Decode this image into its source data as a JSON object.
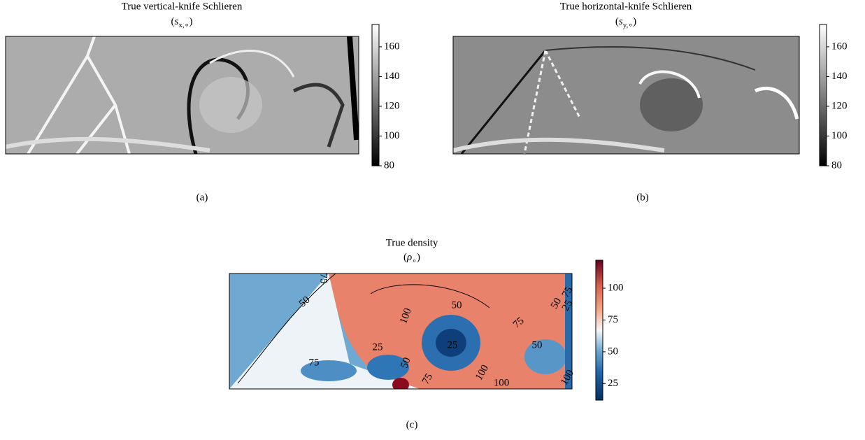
{
  "chart_data": [
    {
      "type": "heatmap",
      "title": "True vertical-knife Schlieren",
      "subtitle": [
        "(",
        "s",
        "x,∘",
        ")"
      ],
      "caption": "(a)",
      "colormap": "gray",
      "clim": [
        80,
        175
      ],
      "cticks": [
        80,
        100,
        120,
        140,
        160
      ]
    },
    {
      "type": "heatmap",
      "title": "True horizontal-knife Schlieren",
      "subtitle": [
        "(",
        "s",
        "y,∘",
        ")"
      ],
      "caption": "(b)",
      "colormap": "gray",
      "clim": [
        80,
        175
      ],
      "cticks": [
        80,
        100,
        120,
        140,
        160
      ]
    },
    {
      "type": "heatmap",
      "title": "True density",
      "subtitle": [
        "(",
        "ρ",
        "∘",
        ")"
      ],
      "caption": "(c)",
      "colormap": "RdBu_r",
      "clim": [
        12,
        122
      ],
      "cticks": [
        25,
        50,
        75,
        100
      ],
      "contour_labels": [
        75,
        50,
        50,
        100,
        25,
        75,
        25,
        50,
        100,
        75,
        50,
        50,
        75,
        25,
        100,
        100,
        75
      ]
    }
  ]
}
